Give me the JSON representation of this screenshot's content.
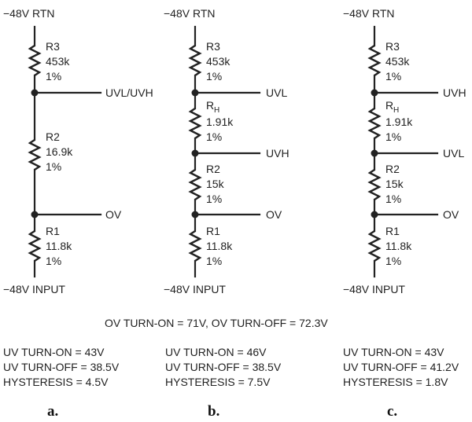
{
  "circuits": [
    {
      "caption": "a.",
      "top_label": "−48V RTN",
      "bottom_label": "−48V INPUT",
      "resistors": [
        {
          "name": "R3",
          "value": "453k",
          "tolerance": "1%"
        },
        {
          "name": "R2",
          "value": "16.9k",
          "tolerance": "1%"
        },
        {
          "name": "R1",
          "value": "11.8k",
          "tolerance": "1%"
        }
      ],
      "taps": [
        {
          "label": "UVL/UVH"
        },
        {
          "label": "OV"
        }
      ],
      "results": [
        "UV TURN-ON = 43V",
        "UV TURN-OFF = 38.5V",
        "HYSTERESIS = 4.5V"
      ]
    },
    {
      "caption": "b.",
      "top_label": "−48V RTN",
      "bottom_label": "−48V INPUT",
      "resistors": [
        {
          "name": "R3",
          "value": "453k",
          "tolerance": "1%"
        },
        {
          "name": "R",
          "name_sub": "H",
          "value": "1.91k",
          "tolerance": "1%"
        },
        {
          "name": "R2",
          "value": "15k",
          "tolerance": "1%"
        },
        {
          "name": "R1",
          "value": "11.8k",
          "tolerance": "1%"
        }
      ],
      "taps": [
        {
          "label": "UVL"
        },
        {
          "label": "UVH"
        },
        {
          "label": "OV"
        }
      ],
      "results": [
        "UV TURN-ON = 46V",
        "UV TURN-OFF = 38.5V",
        "HYSTERESIS = 7.5V"
      ]
    },
    {
      "caption": "c.",
      "top_label": "−48V RTN",
      "bottom_label": "−48V INPUT",
      "resistors": [
        {
          "name": "R3",
          "value": "453k",
          "tolerance": "1%"
        },
        {
          "name": "R",
          "name_sub": "H",
          "value": "1.91k",
          "tolerance": "1%"
        },
        {
          "name": "R2",
          "value": "15k",
          "tolerance": "1%"
        },
        {
          "name": "R1",
          "value": "11.8k",
          "tolerance": "1%"
        }
      ],
      "taps": [
        {
          "label": "UVH"
        },
        {
          "label": "UVL"
        },
        {
          "label": "OV"
        }
      ],
      "results": [
        "UV TURN-ON = 43V",
        "UV TURN-OFF = 41.2V",
        "HYSTERESIS = 1.8V"
      ]
    }
  ],
  "ov_note": "OV TURN-ON = 71V, OV TURN-OFF = 72.3V"
}
